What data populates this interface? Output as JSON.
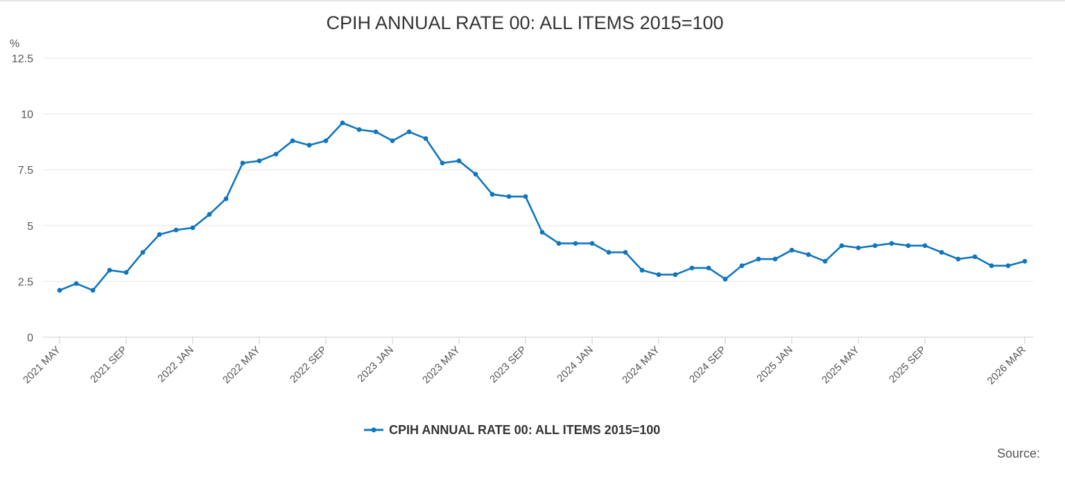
{
  "chart_data": {
    "type": "line",
    "title": "CPIH ANNUAL RATE 00: ALL ITEMS 2015=100",
    "ylabel": "%",
    "xlabel": "",
    "ylim": [
      0,
      12.5
    ],
    "y_ticks": [
      0,
      2.5,
      5,
      7.5,
      10,
      12.5
    ],
    "y_tick_labels": [
      "0",
      "2.5",
      "5",
      "7.5",
      "10",
      "12.5"
    ],
    "x_tick_labels": [
      "2021 MAY",
      "2021 SEP",
      "2022 JAN",
      "2022 MAY",
      "2022 SEP",
      "2023 JAN",
      "2023 MAY",
      "2023 SEP",
      "2024 JAN",
      "2024 MAY",
      "2024 SEP",
      "2025 JAN",
      "2025 MAY",
      "2025 SEP",
      "2026 MAR"
    ],
    "x_tick_positions": [
      0,
      4,
      8,
      12,
      16,
      20,
      24,
      28,
      32,
      36,
      40,
      44,
      48,
      52,
      58
    ],
    "grid": true,
    "legend_position": "bottom-center",
    "color": "#0f75bc",
    "x": [
      "2021 MAY",
      "2021 JUN",
      "2021 JUL",
      "2021 AUG",
      "2021 SEP",
      "2021 OCT",
      "2021 NOV",
      "2021 DEC",
      "2022 JAN",
      "2022 FEB",
      "2022 MAR",
      "2022 APR",
      "2022 MAY",
      "2022 JUN",
      "2022 JUL",
      "2022 AUG",
      "2022 SEP",
      "2022 OCT",
      "2022 NOV",
      "2022 DEC",
      "2023 JAN",
      "2023 FEB",
      "2023 MAR",
      "2023 APR",
      "2023 MAY",
      "2023 JUN",
      "2023 JUL",
      "2023 AUG",
      "2023 SEP",
      "2023 OCT",
      "2023 NOV",
      "2023 DEC",
      "2024 JAN",
      "2024 FEB",
      "2024 MAR",
      "2024 APR",
      "2024 MAY",
      "2024 JUN",
      "2024 JUL",
      "2024 AUG",
      "2024 SEP",
      "2024 OCT",
      "2024 NOV",
      "2024 DEC",
      "2025 JAN",
      "2025 FEB",
      "2025 MAR",
      "2025 APR",
      "2025 MAY",
      "2025 JUN",
      "2025 JUL",
      "2025 AUG",
      "2025 SEP",
      "2025 OCT",
      "2025 NOV",
      "2025 DEC",
      "2026 JAN",
      "2026 FEB",
      "2026 MAR"
    ],
    "series": [
      {
        "name": "CPIH ANNUAL RATE 00: ALL ITEMS 2015=100",
        "values": [
          2.1,
          2.4,
          2.1,
          3.0,
          2.9,
          3.8,
          4.6,
          4.8,
          4.9,
          5.5,
          6.2,
          7.8,
          7.9,
          8.2,
          8.8,
          8.6,
          8.8,
          9.6,
          9.3,
          9.2,
          8.8,
          9.2,
          8.9,
          7.8,
          7.9,
          7.3,
          6.4,
          6.3,
          6.3,
          4.7,
          4.2,
          4.2,
          4.2,
          3.8,
          3.8,
          3.0,
          2.8,
          2.8,
          3.1,
          3.1,
          2.6,
          3.2,
          3.5,
          3.5,
          3.9,
          3.7,
          3.4,
          4.1,
          4.0,
          4.1,
          4.2,
          4.1,
          4.1,
          3.8,
          3.5,
          3.6,
          3.2,
          3.2,
          3.4
        ]
      }
    ]
  },
  "source_label": "Source:"
}
